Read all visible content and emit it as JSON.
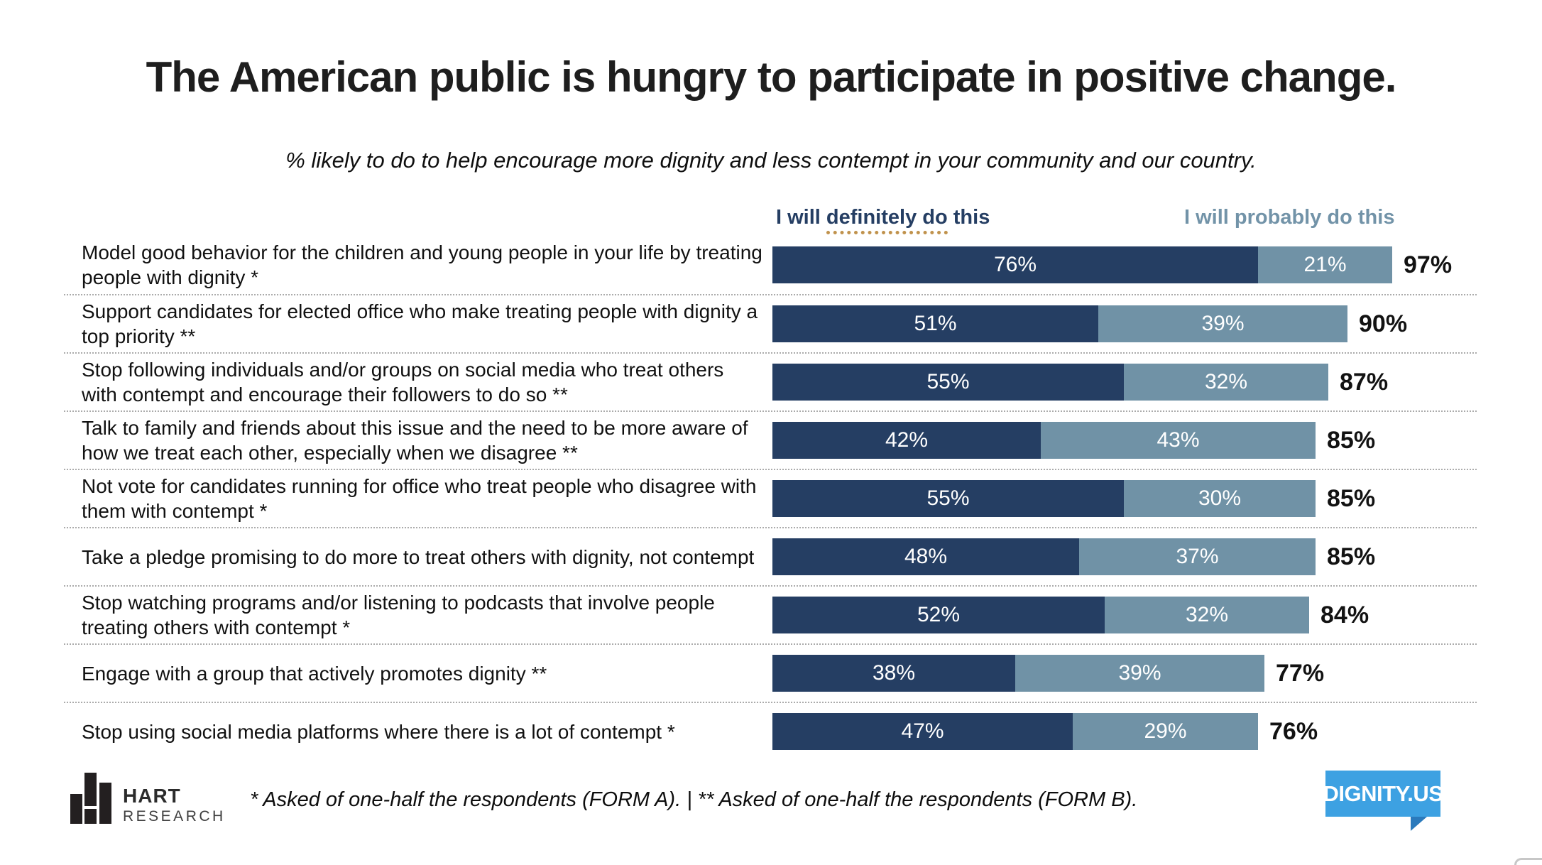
{
  "slide": {
    "title": "The American public is hungry to participate in positive change.",
    "subtitle": "% likely to do to help encourage more dignity and less contempt in your community and our country."
  },
  "legend": {
    "definitely_prefix": "I will ",
    "definitely_underlined": "definitely do",
    "definitely_suffix": " this",
    "probably_label": "I will probably do this",
    "definitely_color": "#253e63",
    "probably_color": "#7293a8",
    "underline_color": "#c0924c"
  },
  "chart_data": {
    "type": "bar",
    "orientation": "horizontal",
    "stacked": true,
    "xlim": [
      0,
      100
    ],
    "value_suffix": "%",
    "grid": "dotted-row-separators",
    "legend_position": "top",
    "categories": [
      "Model good behavior for the children and young people in your life by treating people with dignity *",
      "Support candidates for elected office who make treating people with dignity a top priority **",
      "Stop following individuals and/or groups on social media who treat others with contempt and encourage their followers to do so **",
      "Talk to family and friends about this issue and the need to be more aware of how we treat each other, especially when we disagree **",
      "Not vote for candidates running for office who treat people who disagree with them with contempt *",
      "Take a pledge promising to do more to treat others with dignity, not contempt",
      "Stop watching programs and/or listening to podcasts that involve people treating others with contempt *",
      "Engage with a group that actively promotes dignity **",
      "Stop using social media platforms where there is a lot of contempt *"
    ],
    "series": [
      {
        "name": "I will definitely do this",
        "color": "#253e63",
        "values": [
          76,
          51,
          55,
          42,
          55,
          48,
          52,
          38,
          47
        ]
      },
      {
        "name": "I will probably do this",
        "color": "#7092a6",
        "values": [
          21,
          39,
          32,
          43,
          30,
          37,
          32,
          39,
          29
        ]
      }
    ],
    "totals": [
      "97%",
      "90%",
      "87%",
      "85%",
      "85%",
      "85%",
      "84%",
      "77%",
      "76%"
    ]
  },
  "footer": {
    "footnote": "* Asked of one-half the respondents (FORM A). | ** Asked of one-half the respondents (FORM B).",
    "hart_logo": {
      "icon": "bar-chart-icon",
      "line1": "HART",
      "line2": "RESEARCH"
    },
    "dignity_logo": {
      "label": "DIGNITY.US",
      "bg": "#3da1e2",
      "tail": "#2a7abc"
    }
  }
}
